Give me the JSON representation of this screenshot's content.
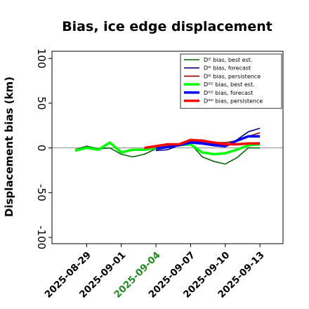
{
  "chart_data": {
    "type": "line",
    "title": "Bias, ice edge displacement",
    "ylabel": "Displacement bias (km)",
    "xlabel": "",
    "ylim": [
      -107,
      108
    ],
    "xlim": [
      "2025-08-26",
      "2025-09-15"
    ],
    "yticks": [
      -100,
      -50,
      0,
      50,
      100
    ],
    "xticks": [
      {
        "date": "2025-08-29",
        "label": "2025-08-29",
        "color": "#000000"
      },
      {
        "date": "2025-09-01",
        "label": "2025-09-01",
        "color": "#000000"
      },
      {
        "date": "2025-09-04",
        "label": "2025-09-04",
        "color": "#228B22"
      },
      {
        "date": "2025-09-07",
        "label": "2025-09-07",
        "color": "#000000"
      },
      {
        "date": "2025-09-10",
        "label": "2025-09-10",
        "color": "#000000"
      },
      {
        "date": "2025-09-13",
        "label": "2025-09-13",
        "color": "#000000"
      }
    ],
    "zero_line": true,
    "grid": false,
    "legend_position": "top-right",
    "series": [
      {
        "name": "Dᴵᴱ bias, best est.",
        "color": "#006400",
        "width": 1.6,
        "points": [
          [
            "2025-08-28",
            -2
          ],
          [
            "2025-08-29",
            2
          ],
          [
            "2025-08-30",
            -1
          ],
          [
            "2025-08-31",
            0
          ],
          [
            "2025-09-01",
            -7
          ],
          [
            "2025-09-02",
            -10
          ],
          [
            "2025-09-03",
            -7
          ],
          [
            "2025-09-04",
            -1
          ],
          [
            "2025-09-05",
            2
          ],
          [
            "2025-09-06",
            3
          ],
          [
            "2025-09-07",
            5
          ],
          [
            "2025-09-08",
            -10
          ],
          [
            "2025-09-09",
            -15
          ],
          [
            "2025-09-10",
            -18
          ],
          [
            "2025-09-11",
            -11
          ],
          [
            "2025-09-12",
            0
          ],
          [
            "2025-09-13",
            0
          ]
        ]
      },
      {
        "name": "Dᴵᴱ bias, forecast",
        "color": "#00008B",
        "width": 1.6,
        "points": [
          [
            "2025-09-04",
            -3
          ],
          [
            "2025-09-05",
            -2
          ],
          [
            "2025-09-06",
            3
          ],
          [
            "2025-09-07",
            7
          ],
          [
            "2025-09-08",
            7
          ],
          [
            "2025-09-09",
            5
          ],
          [
            "2025-09-10",
            2
          ],
          [
            "2025-09-11",
            9
          ],
          [
            "2025-09-12",
            18
          ],
          [
            "2025-09-13",
            22
          ]
        ]
      },
      {
        "name": "Dᴵᴱ bias, persistence",
        "color": "#8B0000",
        "width": 1.6,
        "points": [
          [
            "2025-09-03",
            0
          ],
          [
            "2025-09-04",
            2
          ],
          [
            "2025-09-05",
            4
          ],
          [
            "2025-09-06",
            4
          ],
          [
            "2025-09-07",
            9
          ],
          [
            "2025-09-08",
            9
          ],
          [
            "2025-09-09",
            6
          ],
          [
            "2025-09-10",
            6
          ],
          [
            "2025-09-11",
            8
          ],
          [
            "2025-09-12",
            13
          ],
          [
            "2025-09-13",
            17
          ]
        ]
      },
      {
        "name": "Dᴵᴱᴱ bias, best est.",
        "color": "#00FF00",
        "width": 3.5,
        "points": [
          [
            "2025-08-28",
            -3
          ],
          [
            "2025-08-29",
            0
          ],
          [
            "2025-08-30",
            -2
          ],
          [
            "2025-08-31",
            6
          ],
          [
            "2025-09-01",
            -5
          ],
          [
            "2025-09-02",
            -2
          ],
          [
            "2025-09-03",
            -2
          ],
          [
            "2025-09-04",
            0
          ],
          [
            "2025-09-05",
            2
          ],
          [
            "2025-09-06",
            3
          ],
          [
            "2025-09-07",
            4
          ],
          [
            "2025-09-08",
            -5
          ],
          [
            "2025-09-09",
            -7
          ],
          [
            "2025-09-10",
            -6
          ],
          [
            "2025-09-11",
            -2
          ],
          [
            "2025-09-12",
            3
          ],
          [
            "2025-09-13",
            4
          ]
        ]
      },
      {
        "name": "Dᴵᴱᴱ bias, forecast",
        "color": "#0000FF",
        "width": 3.5,
        "points": [
          [
            "2025-09-04",
            -1
          ],
          [
            "2025-09-05",
            1
          ],
          [
            "2025-09-06",
            3
          ],
          [
            "2025-09-07",
            6
          ],
          [
            "2025-09-08",
            5
          ],
          [
            "2025-09-09",
            3
          ],
          [
            "2025-09-10",
            2
          ],
          [
            "2025-09-11",
            8
          ],
          [
            "2025-09-12",
            13
          ],
          [
            "2025-09-13",
            13
          ]
        ]
      },
      {
        "name": "Dᴵᴱᴱ bias, persistence",
        "color": "#FF0000",
        "width": 3.5,
        "points": [
          [
            "2025-09-03",
            0
          ],
          [
            "2025-09-04",
            2
          ],
          [
            "2025-09-05",
            4
          ],
          [
            "2025-09-06",
            4
          ],
          [
            "2025-09-07",
            9
          ],
          [
            "2025-09-08",
            8
          ],
          [
            "2025-09-09",
            6
          ],
          [
            "2025-09-10",
            4
          ],
          [
            "2025-09-11",
            4
          ],
          [
            "2025-09-12",
            5
          ],
          [
            "2025-09-13",
            5
          ]
        ]
      }
    ]
  }
}
